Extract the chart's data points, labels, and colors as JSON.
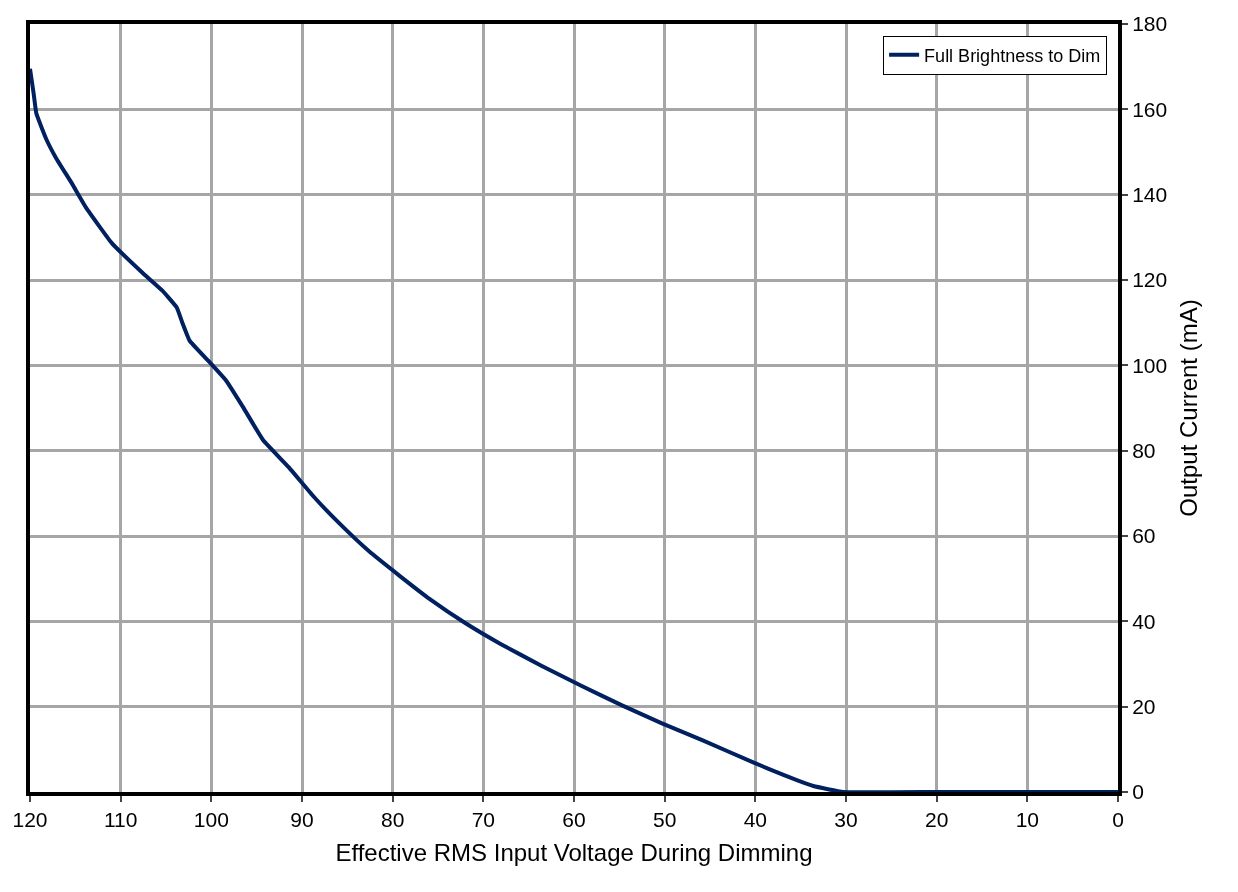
{
  "chart_data": {
    "type": "line",
    "xlabel": "Effective RMS Input Voltage During Dimming",
    "ylabel": "Output Current (mA)",
    "xlim": [
      120,
      0
    ],
    "xticks": [
      120,
      110,
      100,
      90,
      80,
      70,
      60,
      50,
      40,
      30,
      20,
      10,
      0
    ],
    "ylim": [
      0,
      180
    ],
    "yticks": [
      0,
      20,
      40,
      60,
      80,
      100,
      120,
      140,
      160,
      180
    ],
    "grid": true,
    "legend": "top right",
    "marker": "none",
    "line_style": "solid",
    "series": [
      {
        "name": "Full Brightness to Dim",
        "color": "#002060",
        "x": [
          120,
          119.6,
          119.3,
          118.2,
          117.1,
          115.4,
          113.8,
          111,
          107.6,
          105.4,
          103.8,
          103.2,
          102.4,
          100.4,
          98.4,
          96.5,
          94.3,
          91.5,
          88.7,
          85.9,
          82.6,
          79.2,
          75.9,
          72,
          68.1,
          63.6,
          59.2,
          54.7,
          50.3,
          45.8,
          40.3,
          36.9,
          33.6,
          30.3,
          20,
          10,
          0
        ],
        "values": [
          169.5,
          163.7,
          159,
          153,
          148.5,
          142.7,
          136.9,
          128.7,
          121.7,
          117.5,
          113.5,
          110,
          105.8,
          101.2,
          96.5,
          90.2,
          82.5,
          76.2,
          69.2,
          63,
          56.4,
          50.6,
          45.2,
          39.6,
          34.7,
          29.6,
          24.9,
          20.3,
          16.1,
          12.1,
          7,
          4,
          1.4,
          0,
          0,
          0,
          0
        ]
      }
    ]
  }
}
